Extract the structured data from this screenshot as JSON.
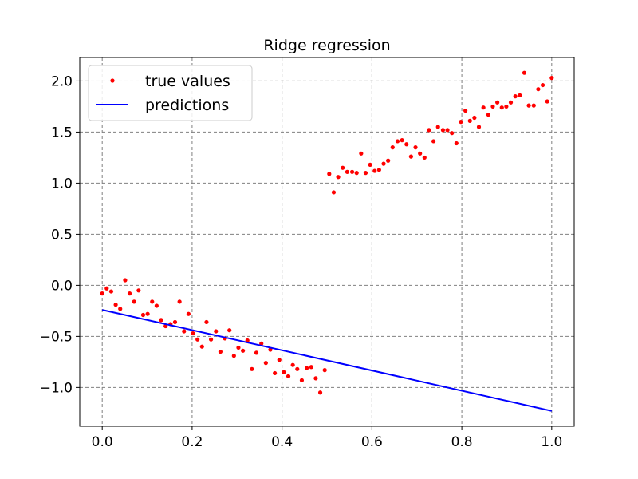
{
  "chart_data": {
    "type": "scatter",
    "title": "Ridge regression",
    "xlabel": "",
    "ylabel": "",
    "xlim": [
      -0.05,
      1.05
    ],
    "ylim": [
      -1.38,
      2.23
    ],
    "x_ticks": [
      0.0,
      0.2,
      0.4,
      0.6,
      0.8,
      1.0
    ],
    "x_tick_labels": [
      "0.0",
      "0.2",
      "0.4",
      "0.6",
      "0.8",
      "1.0"
    ],
    "y_ticks": [
      -1.0,
      -0.5,
      0.0,
      0.5,
      1.0,
      1.5,
      2.0
    ],
    "y_tick_labels": [
      "−1.0",
      "−0.5",
      "0.0",
      "0.5",
      "1.0",
      "1.5",
      "2.0"
    ],
    "grid": true,
    "legend_position": "top-left",
    "series": [
      {
        "name": "true values",
        "kind": "scatter",
        "color": "#ff0000",
        "points": [
          [
            0.0,
            -0.08
          ],
          [
            0.01,
            -0.03
          ],
          [
            0.02,
            -0.06
          ],
          [
            0.03,
            -0.19
          ],
          [
            0.04,
            -0.23
          ],
          [
            0.051,
            0.05
          ],
          [
            0.061,
            -0.08
          ],
          [
            0.071,
            -0.16
          ],
          [
            0.081,
            -0.05
          ],
          [
            0.091,
            -0.29
          ],
          [
            0.101,
            -0.28
          ],
          [
            0.111,
            -0.16
          ],
          [
            0.121,
            -0.2
          ],
          [
            0.131,
            -0.34
          ],
          [
            0.141,
            -0.4
          ],
          [
            0.152,
            -0.38
          ],
          [
            0.162,
            -0.36
          ],
          [
            0.172,
            -0.16
          ],
          [
            0.182,
            -0.45
          ],
          [
            0.192,
            -0.28
          ],
          [
            0.202,
            -0.47
          ],
          [
            0.212,
            -0.53
          ],
          [
            0.222,
            -0.6
          ],
          [
            0.232,
            -0.36
          ],
          [
            0.242,
            -0.53
          ],
          [
            0.253,
            -0.45
          ],
          [
            0.263,
            -0.65
          ],
          [
            0.273,
            -0.52
          ],
          [
            0.283,
            -0.44
          ],
          [
            0.293,
            -0.69
          ],
          [
            0.303,
            -0.61
          ],
          [
            0.313,
            -0.64
          ],
          [
            0.323,
            -0.54
          ],
          [
            0.333,
            -0.82
          ],
          [
            0.343,
            -0.66
          ],
          [
            0.354,
            -0.57
          ],
          [
            0.364,
            -0.76
          ],
          [
            0.374,
            -0.63
          ],
          [
            0.384,
            -0.86
          ],
          [
            0.394,
            -0.73
          ],
          [
            0.404,
            -0.85
          ],
          [
            0.414,
            -0.89
          ],
          [
            0.424,
            -0.78
          ],
          [
            0.434,
            -0.82
          ],
          [
            0.444,
            -0.93
          ],
          [
            0.455,
            -0.81
          ],
          [
            0.465,
            -0.8
          ],
          [
            0.475,
            -0.91
          ],
          [
            0.485,
            -1.05
          ],
          [
            0.495,
            -0.83
          ],
          [
            0.505,
            1.09
          ],
          [
            0.515,
            0.91
          ],
          [
            0.525,
            1.06
          ],
          [
            0.535,
            1.15
          ],
          [
            0.545,
            1.11
          ],
          [
            0.556,
            1.11
          ],
          [
            0.566,
            1.1
          ],
          [
            0.576,
            1.29
          ],
          [
            0.586,
            1.1
          ],
          [
            0.596,
            1.18
          ],
          [
            0.606,
            1.12
          ],
          [
            0.616,
            1.13
          ],
          [
            0.626,
            1.19
          ],
          [
            0.636,
            1.22
          ],
          [
            0.646,
            1.35
          ],
          [
            0.657,
            1.41
          ],
          [
            0.667,
            1.42
          ],
          [
            0.677,
            1.38
          ],
          [
            0.687,
            1.26
          ],
          [
            0.697,
            1.35
          ],
          [
            0.707,
            1.29
          ],
          [
            0.717,
            1.25
          ],
          [
            0.727,
            1.52
          ],
          [
            0.737,
            1.41
          ],
          [
            0.747,
            1.55
          ],
          [
            0.758,
            1.52
          ],
          [
            0.768,
            1.52
          ],
          [
            0.778,
            1.49
          ],
          [
            0.788,
            1.39
          ],
          [
            0.798,
            1.6
          ],
          [
            0.808,
            1.71
          ],
          [
            0.818,
            1.61
          ],
          [
            0.828,
            1.64
          ],
          [
            0.838,
            1.55
          ],
          [
            0.848,
            1.74
          ],
          [
            0.859,
            1.67
          ],
          [
            0.869,
            1.75
          ],
          [
            0.879,
            1.79
          ],
          [
            0.889,
            1.74
          ],
          [
            0.899,
            1.75
          ],
          [
            0.909,
            1.79
          ],
          [
            0.919,
            1.85
          ],
          [
            0.929,
            1.86
          ],
          [
            0.939,
            2.08
          ],
          [
            0.949,
            1.76
          ],
          [
            0.96,
            1.76
          ],
          [
            0.97,
            1.92
          ],
          [
            0.98,
            1.96
          ],
          [
            0.99,
            1.8
          ],
          [
            1.0,
            2.03
          ]
        ]
      },
      {
        "name": "predictions",
        "kind": "line",
        "color": "#0000ff",
        "points": [
          [
            0.0,
            -0.24
          ],
          [
            1.0,
            -1.23
          ]
        ]
      }
    ]
  }
}
